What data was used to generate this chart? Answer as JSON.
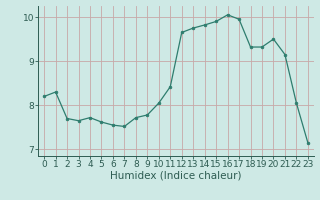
{
  "x": [
    0,
    1,
    2,
    3,
    4,
    5,
    6,
    7,
    8,
    9,
    10,
    11,
    12,
    13,
    14,
    15,
    16,
    17,
    18,
    19,
    20,
    21,
    22,
    23
  ],
  "y": [
    8.2,
    8.3,
    7.7,
    7.65,
    7.72,
    7.62,
    7.55,
    7.52,
    7.72,
    7.78,
    8.05,
    8.42,
    9.65,
    9.75,
    9.82,
    9.9,
    10.05,
    9.95,
    9.32,
    9.32,
    9.5,
    9.15,
    8.05,
    7.15
  ],
  "line_color": "#2e7d6e",
  "marker_color": "#2e7d6e",
  "bg_color": "#cee9e5",
  "grid_color": "#b8d8d4",
  "xlabel": "Humidex (Indice chaleur)",
  "xlim": [
    -0.5,
    23.5
  ],
  "ylim": [
    6.85,
    10.25
  ],
  "yticks": [
    7,
    8,
    9,
    10
  ],
  "xticks": [
    0,
    1,
    2,
    3,
    4,
    5,
    6,
    7,
    8,
    9,
    10,
    11,
    12,
    13,
    14,
    15,
    16,
    17,
    18,
    19,
    20,
    21,
    22,
    23
  ],
  "font_color": "#2e5c52",
  "tick_font_size": 6.5,
  "label_font_size": 7.5
}
